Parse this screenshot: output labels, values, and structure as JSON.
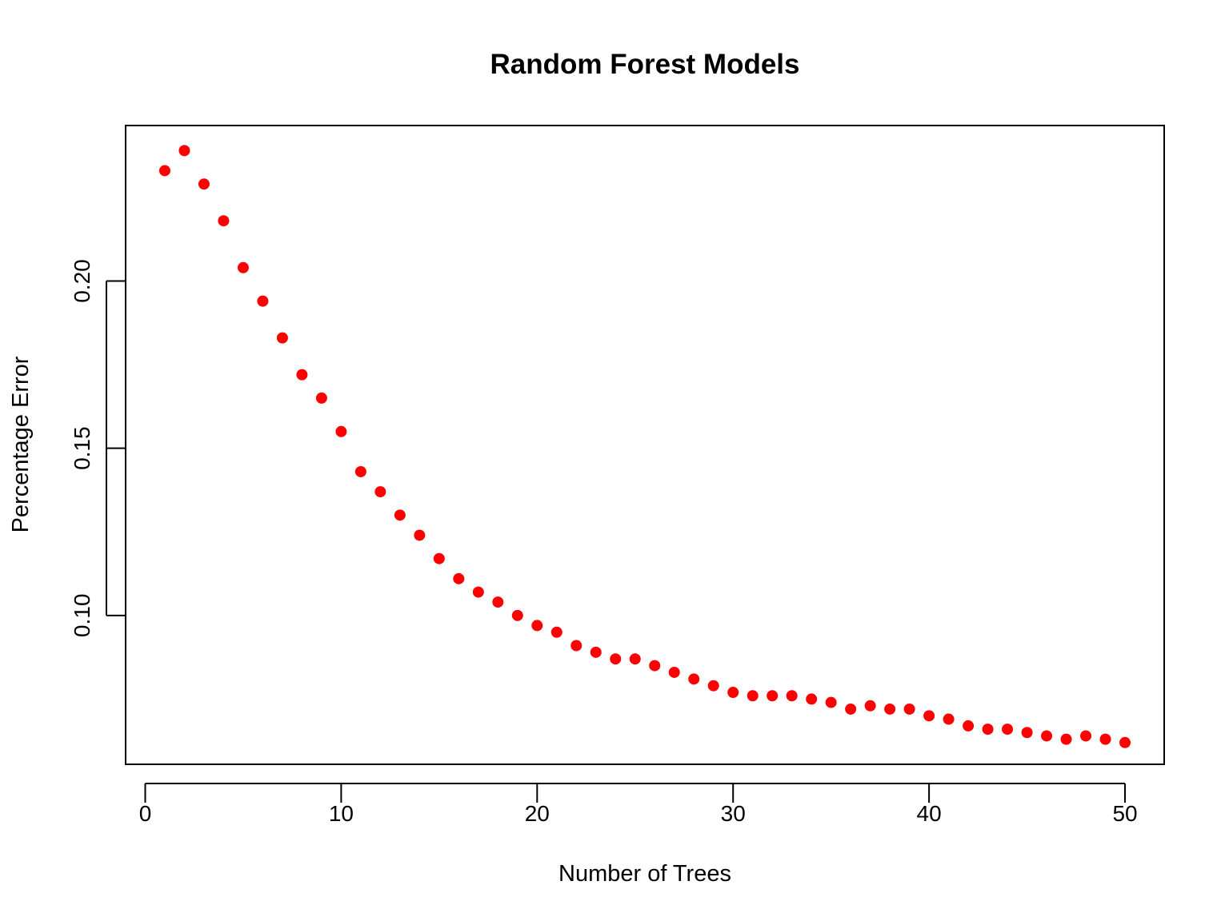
{
  "chart_data": {
    "type": "scatter",
    "title": "Random Forest Models",
    "xlabel": "Number of Trees",
    "ylabel": "Percentage Error",
    "xlim": [
      -1,
      52
    ],
    "ylim": [
      0.0555,
      0.2465
    ],
    "xticks": [
      0,
      10,
      20,
      30,
      40,
      50
    ],
    "xtick_labels": [
      "0",
      "10",
      "20",
      "30",
      "40",
      "50"
    ],
    "yticks": [
      0.1,
      0.15,
      0.2
    ],
    "ytick_labels": [
      "0.10",
      "0.15",
      "0.20"
    ],
    "grid": false,
    "point_color": "#ff0000",
    "series": [
      {
        "x": [
          1,
          2,
          3,
          4,
          5,
          6,
          7,
          8,
          9,
          10,
          11,
          12,
          13,
          14,
          15,
          16,
          17,
          18,
          19,
          20,
          21,
          22,
          23,
          24,
          25,
          26,
          27,
          28,
          29,
          30,
          31,
          32,
          33,
          34,
          35,
          36,
          37,
          38,
          39,
          40,
          41,
          42,
          43,
          44,
          45,
          46,
          47,
          48,
          49,
          50
        ],
        "y": [
          0.233,
          0.239,
          0.229,
          0.218,
          0.204,
          0.194,
          0.183,
          0.172,
          0.165,
          0.155,
          0.143,
          0.137,
          0.13,
          0.124,
          0.117,
          0.111,
          0.107,
          0.104,
          0.1,
          0.097,
          0.095,
          0.091,
          0.089,
          0.087,
          0.087,
          0.085,
          0.083,
          0.081,
          0.079,
          0.077,
          0.076,
          0.076,
          0.076,
          0.075,
          0.074,
          0.072,
          0.073,
          0.072,
          0.072,
          0.07,
          0.069,
          0.067,
          0.066,
          0.066,
          0.065,
          0.064,
          0.063,
          0.064,
          0.063,
          0.062
        ]
      }
    ]
  }
}
